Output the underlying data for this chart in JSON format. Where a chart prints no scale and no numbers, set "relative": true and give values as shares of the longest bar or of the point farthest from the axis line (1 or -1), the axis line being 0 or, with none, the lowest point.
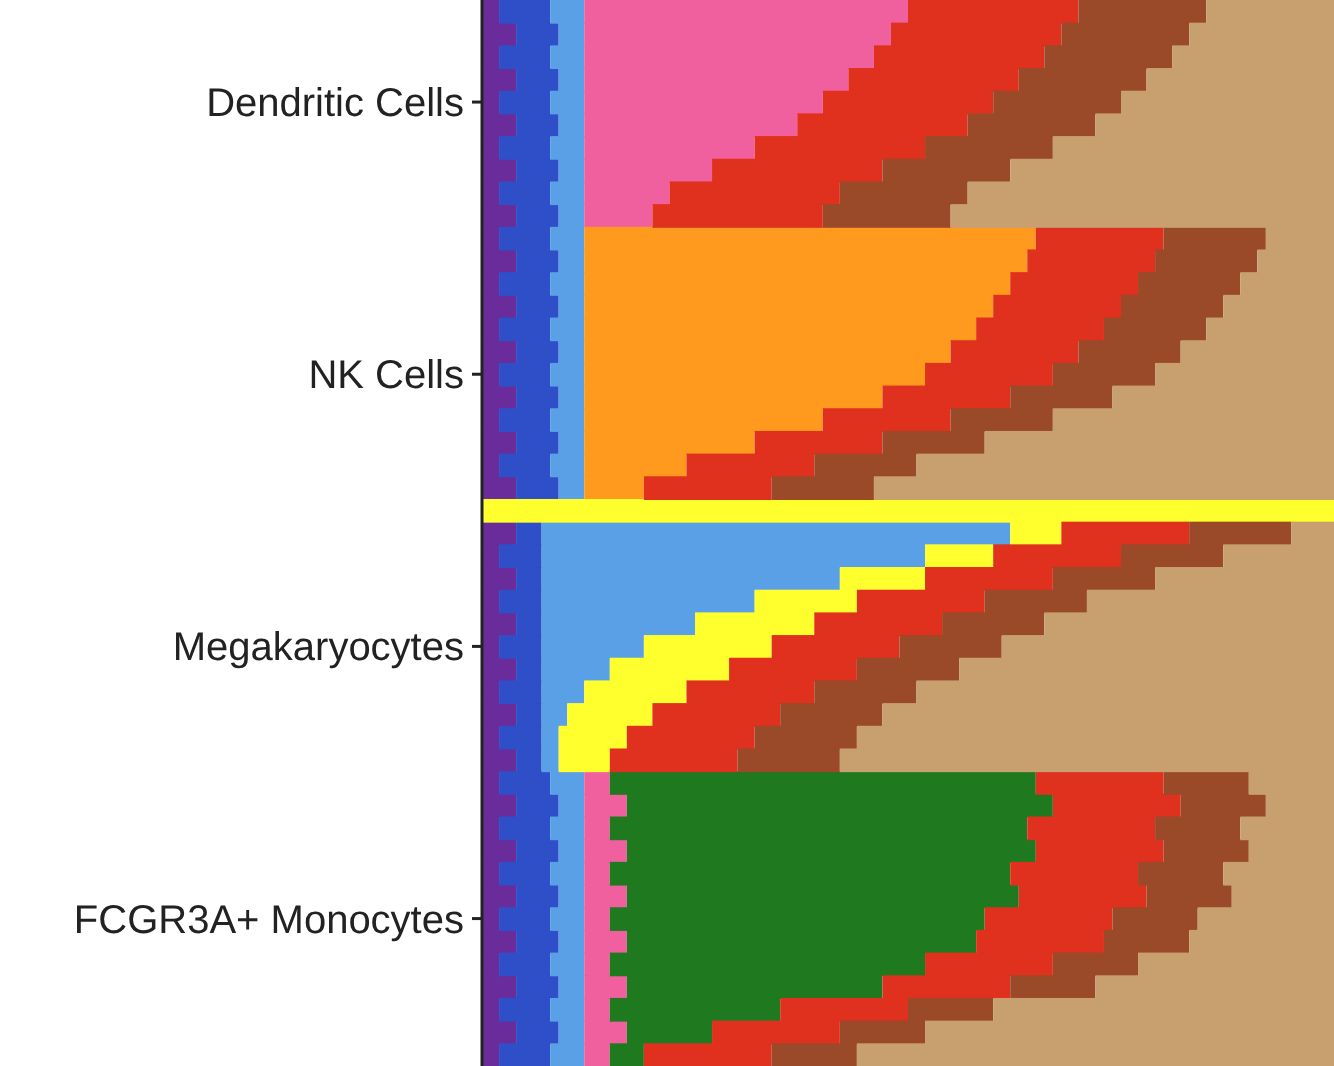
{
  "chart_data": {
    "type": "bar",
    "orientation": "horizontal",
    "stacked": true,
    "relative": true,
    "categories": [
      null,
      null,
      null,
      null,
      "Dendritic Cells",
      null,
      null,
      null,
      null,
      null,
      null,
      null,
      null,
      null,
      null,
      null,
      "NK Cells",
      null,
      null,
      null,
      null,
      null,
      null,
      null,
      null,
      null,
      null,
      null,
      "Megakaryocytes",
      null,
      null,
      null,
      null,
      null,
      null,
      null,
      null,
      null,
      null,
      null,
      "FCGR3A+ Monocytes",
      null,
      null,
      null,
      null,
      null,
      null
    ],
    "series": [
      {
        "color": "#6a2c9a",
        "values": [
          0.02,
          0.04,
          0.02,
          0.04,
          0.02,
          0.04,
          0.02,
          0.04,
          0.02,
          0.04,
          0.02,
          0.04,
          0.02,
          0.04,
          0.02,
          0.04,
          0.02,
          0.04,
          0.02,
          0.04,
          0.02,
          0.04,
          0,
          0.04,
          0.02,
          0.04,
          0.02,
          0.04,
          0.02,
          0.04,
          0.02,
          0.04,
          0.02,
          0.04,
          0.02,
          0.04,
          0.02,
          0.04,
          0.02,
          0.04,
          0.02,
          0.04,
          0.02,
          0.04,
          0.02,
          0.04,
          0.02
        ]
      },
      {
        "color": "#2f4fc8",
        "values": [
          0.06,
          0.05,
          0.06,
          0.05,
          0.06,
          0.05,
          0.06,
          0.05,
          0.06,
          0.05,
          0.06,
          0.05,
          0.06,
          0.05,
          0.06,
          0.05,
          0.06,
          0.05,
          0.06,
          0.05,
          0.06,
          0.05,
          0,
          0.03,
          0.05,
          0.03,
          0.05,
          0.03,
          0.05,
          0.03,
          0.05,
          0.03,
          0.05,
          0.03,
          0.06,
          0.05,
          0.06,
          0.05,
          0.06,
          0.05,
          0.06,
          0.05,
          0.06,
          0.05,
          0.06,
          0.05,
          0.06
        ]
      },
      {
        "color": "#5aa0e6",
        "values": [
          0.04,
          0.03,
          0.04,
          0.03,
          0.04,
          0.03,
          0.04,
          0.03,
          0.04,
          0.03,
          0.04,
          0.03,
          0.04,
          0.03,
          0.04,
          0.03,
          0.04,
          0.03,
          0.04,
          0.03,
          0.04,
          0.03,
          0,
          0.55,
          0.45,
          0.35,
          0.25,
          0.18,
          0.12,
          0.08,
          0.05,
          0.03,
          0.02,
          0.02,
          0.04,
          0.03,
          0.04,
          0.03,
          0.04,
          0.03,
          0.04,
          0.03,
          0.04,
          0.03,
          0.04,
          0.03,
          0.04
        ]
      },
      {
        "color": "#f0609e",
        "values": [
          0.38,
          0.36,
          0.34,
          0.31,
          0.28,
          0.25,
          0.2,
          0.15,
          0.1,
          0.08,
          0,
          0,
          0,
          0,
          0,
          0,
          0,
          0,
          0,
          0,
          0,
          0,
          0,
          0,
          0,
          0,
          0,
          0,
          0,
          0,
          0,
          0,
          0,
          0,
          0.03,
          0.05,
          0.03,
          0.05,
          0.03,
          0.05,
          0.03,
          0.05,
          0.03,
          0.05,
          0.03,
          0.05,
          0.03
        ]
      },
      {
        "color": "#ff9a1e",
        "values": [
          0,
          0,
          0,
          0,
          0,
          0,
          0,
          0,
          0,
          0,
          0.53,
          0.52,
          0.5,
          0.48,
          0.46,
          0.43,
          0.4,
          0.35,
          0.28,
          0.2,
          0.12,
          0.07,
          0,
          0,
          0,
          0,
          0,
          0,
          0,
          0,
          0,
          0,
          0,
          0,
          0,
          0,
          0,
          0,
          0,
          0,
          0,
          0,
          0,
          0,
          0,
          0,
          0
        ]
      },
      {
        "color": "#ffff2e",
        "values": [
          0,
          0,
          0,
          0,
          0,
          0,
          0,
          0,
          0,
          0,
          0,
          0,
          0,
          0,
          0,
          0,
          0,
          0,
          0,
          0,
          0,
          0,
          1,
          0.06,
          0.08,
          0.1,
          0.12,
          0.14,
          0.15,
          0.14,
          0.12,
          0.1,
          0.08,
          0.06,
          0,
          0,
          0,
          0,
          0,
          0,
          0,
          0,
          0,
          0,
          0,
          0,
          0
        ]
      },
      {
        "color": "#1f7a1f",
        "values": [
          0,
          0,
          0,
          0,
          0,
          0,
          0,
          0,
          0,
          0,
          0,
          0,
          0,
          0,
          0,
          0,
          0,
          0,
          0,
          0,
          0,
          0,
          0,
          0,
          0,
          0,
          0,
          0,
          0,
          0,
          0,
          0,
          0,
          0,
          0.5,
          0.5,
          0.49,
          0.48,
          0.47,
          0.46,
          0.44,
          0.41,
          0.37,
          0.3,
          0.2,
          0.1,
          0.04
        ]
      },
      {
        "color": "#e0301e",
        "values": [
          0.2,
          0.2,
          0.2,
          0.2,
          0.2,
          0.2,
          0.2,
          0.2,
          0.2,
          0.2,
          0.15,
          0.15,
          0.15,
          0.15,
          0.15,
          0.15,
          0.15,
          0.15,
          0.15,
          0.15,
          0.15,
          0.15,
          0,
          0.15,
          0.15,
          0.15,
          0.15,
          0.15,
          0.15,
          0.15,
          0.15,
          0.15,
          0.15,
          0.15,
          0.15,
          0.15,
          0.15,
          0.15,
          0.15,
          0.15,
          0.15,
          0.15,
          0.15,
          0.15,
          0.15,
          0.15,
          0.15
        ]
      },
      {
        "color": "#9a4a28",
        "values": [
          0.15,
          0.15,
          0.15,
          0.15,
          0.15,
          0.15,
          0.15,
          0.15,
          0.15,
          0.15,
          0.12,
          0.12,
          0.12,
          0.12,
          0.12,
          0.12,
          0.12,
          0.12,
          0.12,
          0.12,
          0.12,
          0.12,
          0,
          0.12,
          0.12,
          0.12,
          0.12,
          0.12,
          0.12,
          0.12,
          0.12,
          0.12,
          0.12,
          0.12,
          0.1,
          0.1,
          0.1,
          0.1,
          0.1,
          0.1,
          0.1,
          0.1,
          0.1,
          0.1,
          0.1,
          0.1,
          0.1
        ]
      },
      {
        "color": "#c8a070",
        "values": [
          0.15,
          0.17,
          0.19,
          0.22,
          0.25,
          0.28,
          0.33,
          0.38,
          0.43,
          0.45,
          0.08,
          0.09,
          0.11,
          0.13,
          0.15,
          0.18,
          0.21,
          0.26,
          0.33,
          0.41,
          0.49,
          0.54,
          0,
          0.05,
          0.13,
          0.21,
          0.29,
          0.34,
          0.39,
          0.44,
          0.49,
          0.53,
          0.56,
          0.58,
          0.1,
          0.08,
          0.11,
          0.1,
          0.13,
          0.12,
          0.16,
          0.17,
          0.23,
          0.28,
          0.4,
          0.48,
          0.56
        ]
      }
    ]
  }
}
